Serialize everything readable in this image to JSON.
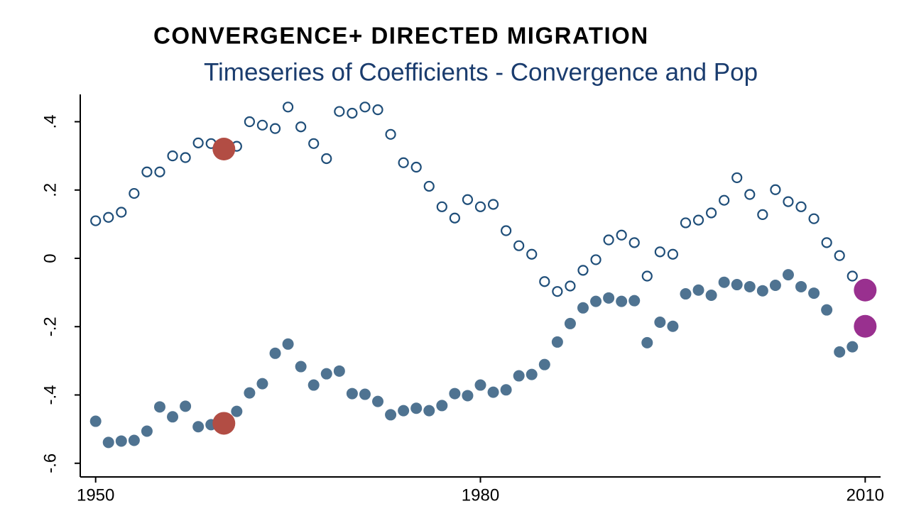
{
  "heading": "CONVERGENCE+ DIRECTED MIGRATION",
  "chart_data": {
    "type": "scatter",
    "title": "Timeseries of Coefficients - Convergence and Pop",
    "x": [
      1950,
      1951,
      1952,
      1953,
      1954,
      1955,
      1956,
      1957,
      1958,
      1959,
      1960,
      1961,
      1962,
      1963,
      1964,
      1965,
      1966,
      1967,
      1968,
      1969,
      1970,
      1971,
      1972,
      1973,
      1974,
      1975,
      1976,
      1977,
      1978,
      1979,
      1980,
      1981,
      1982,
      1983,
      1984,
      1985,
      1986,
      1987,
      1988,
      1989,
      1990,
      1991,
      1992,
      1993,
      1994,
      1995,
      1996,
      1997,
      1998,
      1999,
      2000,
      2001,
      2002,
      2003,
      2004,
      2005,
      2006,
      2007,
      2008,
      2009,
      2010
    ],
    "series": [
      {
        "color": "#1f4e79",
        "marker": "hollow",
        "values": [
          0.11,
          0.12,
          0.135,
          0.19,
          0.253,
          0.253,
          0.3,
          0.295,
          0.338,
          0.336,
          0.32,
          0.328,
          0.4,
          0.39,
          0.38,
          0.443,
          0.385,
          0.336,
          0.292,
          0.43,
          0.425,
          0.443,
          0.435,
          0.363,
          0.28,
          0.267,
          0.211,
          0.151,
          0.118,
          0.172,
          0.151,
          0.158,
          0.081,
          0.037,
          0.012,
          -0.068,
          -0.097,
          -0.081,
          -0.035,
          -0.004,
          0.054,
          0.068,
          0.046,
          -0.052,
          0.019,
          0.012,
          0.104,
          0.112,
          0.133,
          0.17,
          0.236,
          0.187,
          0.128,
          0.201,
          0.166,
          0.151,
          0.116,
          0.046,
          0.008,
          -0.052,
          -0.093
        ]
      },
      {
        "color": "#4f7391",
        "marker": "filled",
        "values": [
          -0.477,
          -0.539,
          -0.535,
          -0.533,
          -0.506,
          -0.435,
          -0.464,
          -0.433,
          -0.493,
          -0.487,
          -0.483,
          -0.448,
          -0.394,
          -0.367,
          -0.278,
          -0.251,
          -0.317,
          -0.371,
          -0.338,
          -0.33,
          -0.396,
          -0.398,
          -0.419,
          -0.458,
          -0.446,
          -0.439,
          -0.446,
          -0.431,
          -0.396,
          -0.402,
          -0.371,
          -0.392,
          -0.385,
          -0.344,
          -0.34,
          -0.311,
          -0.245,
          -0.191,
          -0.145,
          -0.126,
          -0.116,
          -0.126,
          -0.124,
          -0.247,
          -0.187,
          -0.199,
          -0.104,
          -0.093,
          -0.108,
          -0.07,
          -0.077,
          -0.083,
          -0.095,
          -0.079,
          -0.048,
          -0.083,
          -0.102,
          -0.151,
          -0.274,
          -0.259,
          -0.199
        ]
      },
      {
        "color": "#b24d44",
        "marker": "highlight",
        "x": [
          1960,
          1960
        ],
        "values": [
          0.32,
          -0.483
        ]
      },
      {
        "color": "#99308f",
        "marker": "highlight",
        "x": [
          2010,
          2010
        ],
        "values": [
          -0.093,
          -0.199
        ]
      }
    ],
    "xlim": [
      1948.8,
      2011.2
    ],
    "ylim": [
      -0.64,
      0.48
    ],
    "xticks": [
      1950,
      1980,
      2010
    ],
    "yticks": [
      {
        "value": 0.4,
        "label": ".4"
      },
      {
        "value": 0.2,
        "label": ".2"
      },
      0,
      {
        "value": -0.2,
        "label": "-.2"
      },
      {
        "value": -0.4,
        "label": "-.4"
      },
      {
        "value": -0.6,
        "label": "-.6"
      }
    ]
  }
}
